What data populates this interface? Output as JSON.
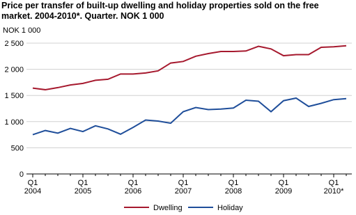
{
  "chart_data": {
    "type": "line",
    "title": "Price per transfer of built-up dwelling and holiday properties sold on the free market. 2004-2010*. Quarter. NOK 1 000",
    "y_label": "NOK 1 000",
    "categories": [
      "Q1 2004",
      null,
      null,
      null,
      "Q1 2005",
      null,
      null,
      null,
      "Q1 2006",
      null,
      null,
      null,
      "Q1 2007",
      null,
      null,
      null,
      "Q1 2008",
      null,
      null,
      null,
      "Q1 2009",
      null,
      null,
      null,
      "Q1 2010*",
      null
    ],
    "series": [
      {
        "name": "Dwelling",
        "color": "#a6192e",
        "values": [
          1640,
          1610,
          1650,
          1700,
          1730,
          1790,
          1810,
          1910,
          1910,
          1930,
          1970,
          2120,
          2150,
          2250,
          2300,
          2340,
          2340,
          2350,
          2440,
          2390,
          2260,
          2280,
          2280,
          2420,
          2430,
          2450
        ]
      },
      {
        "name": "Holiday",
        "color": "#1f4e9a",
        "values": [
          750,
          830,
          780,
          870,
          810,
          920,
          860,
          760,
          890,
          1030,
          1010,
          970,
          1190,
          1270,
          1230,
          1240,
          1260,
          1410,
          1390,
          1190,
          1400,
          1450,
          1290,
          1350,
          1420,
          1440
        ]
      }
    ],
    "ylim": [
      0,
      2500
    ],
    "yticks": [
      0,
      500,
      {
        "value": 1000,
        "label": "1 000"
      },
      {
        "value": 1500,
        "label": "1 500"
      },
      {
        "value": 2000,
        "label": "2 000"
      },
      {
        "value": 2500,
        "label": "2 500"
      }
    ],
    "grid": true,
    "legend": "bottom"
  }
}
